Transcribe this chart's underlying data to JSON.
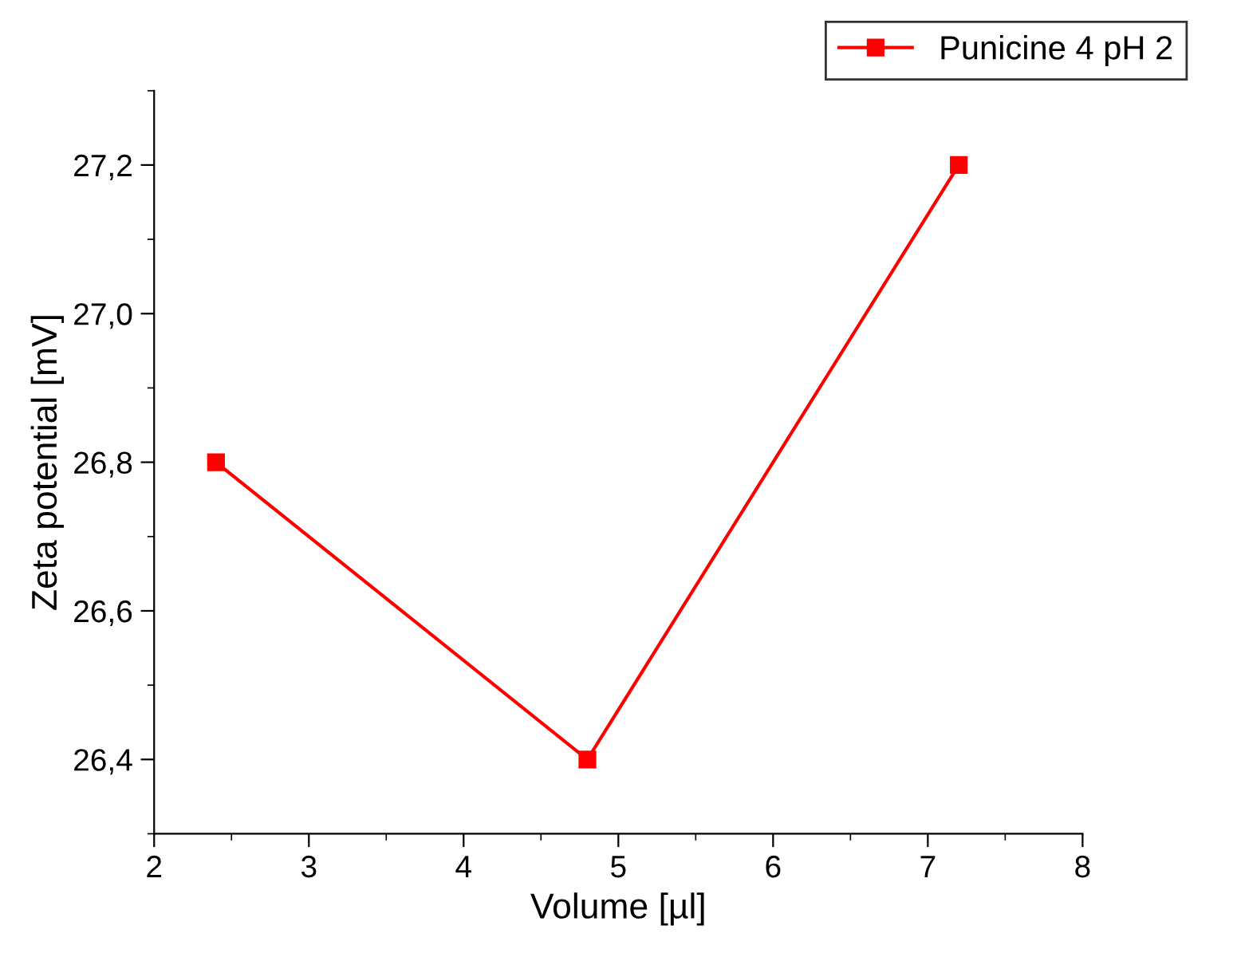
{
  "chart_data": {
    "type": "line",
    "xlabel": "Volume [µl]",
    "ylabel": "Zeta potential [mV]",
    "x": [
      2.4,
      4.8,
      7.2
    ],
    "series": [
      {
        "name": "Punicine 4 pH 2",
        "color": "#ff0000",
        "values": [
          26.8,
          26.4,
          27.2
        ]
      }
    ],
    "xlim": [
      2,
      8
    ],
    "xticks": [
      2,
      3,
      4,
      5,
      6,
      7,
      8
    ],
    "ylim": [
      26.3,
      27.3
    ],
    "yticks": [
      {
        "value": 26.4,
        "label": "26,4"
      },
      {
        "value": 26.6,
        "label": "26,6"
      },
      {
        "value": 26.8,
        "label": "26,8"
      },
      {
        "value": 27.0,
        "label": "27,0"
      },
      {
        "value": 27.2,
        "label": "27,2"
      }
    ],
    "marker": "square",
    "line_style": "solid",
    "grid": false,
    "legend": "top right"
  }
}
